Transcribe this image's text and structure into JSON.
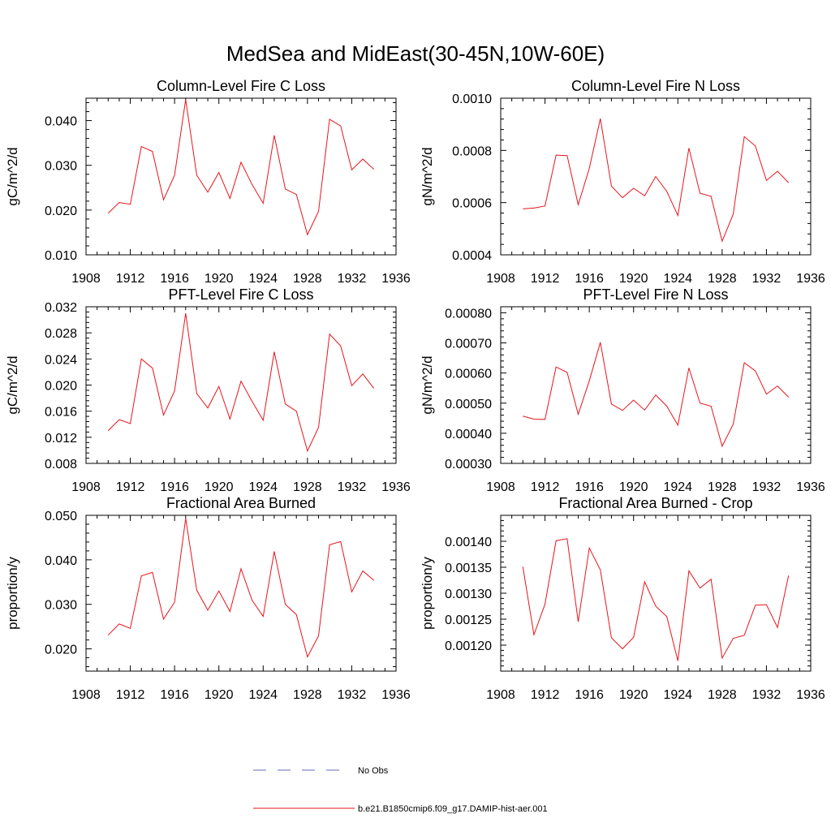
{
  "figure": {
    "title": "MedSea and MidEast(30-45N,10W-60E)"
  },
  "colors": {
    "series": "#e8141c",
    "noobs": "#6a6ab8",
    "axis": "#000000"
  },
  "chart_data": [
    {
      "type": "line",
      "title": "Column-Level Fire C Loss",
      "xlabel": "",
      "ylabel": "gC/m^2/d",
      "xlim": [
        1908,
        1936
      ],
      "ylim": [
        0.01,
        0.045
      ],
      "xticks": [
        1908,
        1912,
        1916,
        1920,
        1924,
        1928,
        1932,
        1936
      ],
      "yticks": [
        0.01,
        0.02,
        0.03,
        0.04
      ],
      "ytick_labels": [
        "0.010",
        "0.020",
        "0.030",
        "0.040"
      ],
      "x": [
        1910,
        1911,
        1912,
        1913,
        1914,
        1915,
        1916,
        1917,
        1918,
        1919,
        1920,
        1921,
        1922,
        1923,
        1924,
        1925,
        1926,
        1927,
        1928,
        1929,
        1930,
        1931,
        1932,
        1933,
        1934
      ],
      "series": [
        {
          "name": "b.e21.B1850cmip6.f09_g17.DAMIP-hist-aer.001",
          "values": [
            0.0193,
            0.0217,
            0.0213,
            0.0342,
            0.0331,
            0.0223,
            0.0278,
            0.0447,
            0.0278,
            0.024,
            0.0284,
            0.0226,
            0.0307,
            0.0257,
            0.0215,
            0.0367,
            0.0247,
            0.0235,
            0.0145,
            0.0197,
            0.0403,
            0.0388,
            0.029,
            0.0314,
            0.0291
          ]
        }
      ]
    },
    {
      "type": "line",
      "title": "Column-Level Fire N Loss",
      "xlabel": "",
      "ylabel": "gN/m^2/d",
      "xlim": [
        1908,
        1936
      ],
      "ylim": [
        0.0004,
        0.001
      ],
      "xticks": [
        1908,
        1912,
        1916,
        1920,
        1924,
        1928,
        1932,
        1936
      ],
      "yticks": [
        0.0004,
        0.0006,
        0.0008,
        0.001
      ],
      "ytick_labels": [
        "0.0004",
        "0.0006",
        "0.0008",
        "0.0010"
      ],
      "x": [
        1910,
        1911,
        1912,
        1913,
        1914,
        1915,
        1916,
        1917,
        1918,
        1919,
        1920,
        1921,
        1922,
        1923,
        1924,
        1925,
        1926,
        1927,
        1928,
        1929,
        1930,
        1931,
        1932,
        1933,
        1934
      ],
      "series": [
        {
          "name": "b.e21.B1850cmip6.f09_g17.DAMIP-hist-aer.001",
          "values": [
            0.000576,
            0.000579,
            0.000587,
            0.000782,
            0.00078,
            0.000592,
            0.000731,
            0.000922,
            0.000663,
            0.000619,
            0.000655,
            0.000626,
            0.0007,
            0.000643,
            0.000551,
            0.000809,
            0.000636,
            0.000624,
            0.000452,
            0.000556,
            0.000853,
            0.000817,
            0.000685,
            0.00072,
            0.000676
          ]
        }
      ]
    },
    {
      "type": "line",
      "title": "PFT-Level Fire C Loss",
      "xlabel": "",
      "ylabel": "gC/m^2/d",
      "xlim": [
        1908,
        1936
      ],
      "ylim": [
        0.008,
        0.032
      ],
      "xticks": [
        1908,
        1912,
        1916,
        1920,
        1924,
        1928,
        1932,
        1936
      ],
      "yticks": [
        0.008,
        0.012,
        0.016,
        0.02,
        0.024,
        0.028,
        0.032
      ],
      "ytick_labels": [
        "0.008",
        "0.012",
        "0.016",
        "0.020",
        "0.024",
        "0.028",
        "0.032"
      ],
      "x": [
        1910,
        1911,
        1912,
        1913,
        1914,
        1915,
        1916,
        1917,
        1918,
        1919,
        1920,
        1921,
        1922,
        1923,
        1924,
        1925,
        1926,
        1927,
        1928,
        1929,
        1930,
        1931,
        1932,
        1933,
        1934
      ],
      "series": [
        {
          "name": "b.e21.B1850cmip6.f09_g17.DAMIP-hist-aer.001",
          "values": [
            0.013,
            0.0147,
            0.0141,
            0.024,
            0.0226,
            0.0154,
            0.0191,
            0.031,
            0.0187,
            0.0165,
            0.0198,
            0.0148,
            0.0206,
            0.0175,
            0.0146,
            0.0251,
            0.0171,
            0.016,
            0.0099,
            0.0135,
            0.0278,
            0.026,
            0.0199,
            0.0217,
            0.0195
          ]
        }
      ]
    },
    {
      "type": "line",
      "title": "PFT-Level Fire N Loss",
      "xlabel": "",
      "ylabel": "gN/m^2/d",
      "xlim": [
        1908,
        1936
      ],
      "ylim": [
        0.0003,
        0.00082
      ],
      "xticks": [
        1908,
        1912,
        1916,
        1920,
        1924,
        1928,
        1932,
        1936
      ],
      "yticks": [
        0.0003,
        0.0004,
        0.0005,
        0.0006,
        0.0007,
        0.0008
      ],
      "ytick_labels": [
        "0.00030",
        "0.00040",
        "0.00050",
        "0.00060",
        "0.00070",
        "0.00080"
      ],
      "x": [
        1910,
        1911,
        1912,
        1913,
        1914,
        1915,
        1916,
        1917,
        1918,
        1919,
        1920,
        1921,
        1922,
        1923,
        1924,
        1925,
        1926,
        1927,
        1928,
        1929,
        1930,
        1931,
        1932,
        1933,
        1934
      ],
      "series": [
        {
          "name": "b.e21.B1850cmip6.f09_g17.DAMIP-hist-aer.001",
          "values": [
            0.000457,
            0.000447,
            0.000446,
            0.00062,
            0.000602,
            0.000463,
            0.000574,
            0.000702,
            0.000497,
            0.000476,
            0.00051,
            0.000477,
            0.000527,
            0.00049,
            0.000427,
            0.000617,
            0.0005,
            0.00049,
            0.000357,
            0.00043,
            0.000634,
            0.000607,
            0.00053,
            0.000557,
            0.00052
          ]
        }
      ]
    },
    {
      "type": "line",
      "title": "Fractional Area Burned",
      "xlabel": "",
      "ylabel": "proportion/y",
      "xlim": [
        1908,
        1936
      ],
      "ylim": [
        0.015,
        0.05
      ],
      "xticks": [
        1908,
        1912,
        1916,
        1920,
        1924,
        1928,
        1932,
        1936
      ],
      "yticks": [
        0.02,
        0.03,
        0.04,
        0.05
      ],
      "ytick_labels": [
        "0.020",
        "0.030",
        "0.040",
        "0.050"
      ],
      "x": [
        1910,
        1911,
        1912,
        1913,
        1914,
        1915,
        1916,
        1917,
        1918,
        1919,
        1920,
        1921,
        1922,
        1923,
        1924,
        1925,
        1926,
        1927,
        1928,
        1929,
        1930,
        1931,
        1932,
        1933,
        1934
      ],
      "series": [
        {
          "name": "b.e21.B1850cmip6.f09_g17.DAMIP-hist-aer.001",
          "values": [
            0.0231,
            0.0256,
            0.0246,
            0.0364,
            0.0372,
            0.0267,
            0.0305,
            0.0493,
            0.0332,
            0.0287,
            0.033,
            0.0284,
            0.038,
            0.0309,
            0.0273,
            0.0419,
            0.03,
            0.0277,
            0.0182,
            0.0229,
            0.0434,
            0.0441,
            0.0328,
            0.0375,
            0.0354
          ]
        }
      ]
    },
    {
      "type": "line",
      "title": "Fractional Area Burned - Crop",
      "xlabel": "",
      "ylabel": "proportion/y",
      "xlim": [
        1908,
        1936
      ],
      "ylim": [
        0.00115,
        0.00145
      ],
      "xticks": [
        1908,
        1912,
        1916,
        1920,
        1924,
        1928,
        1932,
        1936
      ],
      "yticks": [
        0.0012,
        0.00125,
        0.0013,
        0.00135,
        0.0014
      ],
      "ytick_labels": [
        "0.00120",
        "0.00125",
        "0.00130",
        "0.00135",
        "0.00140"
      ],
      "x": [
        1910,
        1911,
        1912,
        1913,
        1914,
        1915,
        1916,
        1917,
        1918,
        1919,
        1920,
        1921,
        1922,
        1923,
        1924,
        1925,
        1926,
        1927,
        1928,
        1929,
        1930,
        1931,
        1932,
        1933,
        1934
      ],
      "series": [
        {
          "name": "b.e21.B1850cmip6.f09_g17.DAMIP-hist-aer.001",
          "values": [
            0.001351,
            0.00122,
            0.001279,
            0.001401,
            0.001405,
            0.001245,
            0.001387,
            0.001345,
            0.001214,
            0.001193,
            0.001215,
            0.001322,
            0.001275,
            0.001255,
            0.00117,
            0.001343,
            0.00131,
            0.001327,
            0.001175,
            0.001213,
            0.001219,
            0.001277,
            0.001278,
            0.001234,
            0.001334
          ]
        }
      ]
    }
  ],
  "legend": {
    "placement": "bottom-center",
    "items": [
      {
        "label": "No Obs",
        "style": "dashed"
      },
      {
        "label": "b.e21.B1850cmip6.f09_g17.DAMIP-hist-aer.001",
        "style": "solid"
      }
    ]
  }
}
